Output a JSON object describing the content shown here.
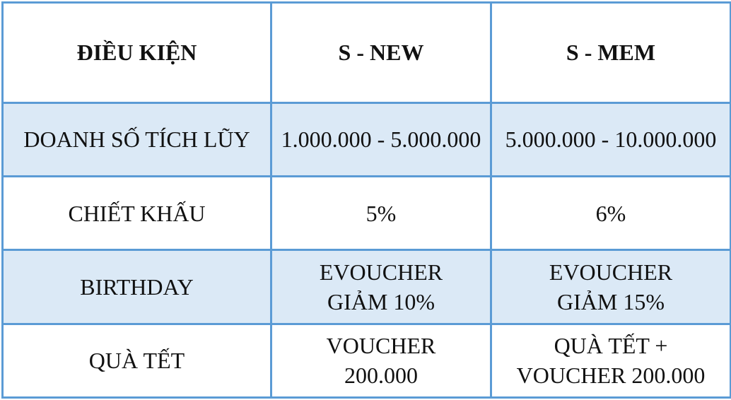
{
  "header": {
    "condition": "ĐIỀU KIỆN",
    "tier1": "S - NEW",
    "tier2": "S - MEM"
  },
  "rows": [
    {
      "label": "DOANH SỐ TÍCH LŨY",
      "tier1": [
        "1.000.000 - 5.000.000"
      ],
      "tier2": [
        "5.000.000 - 10.000.000"
      ]
    },
    {
      "label": "CHIẾT KHẤU",
      "tier1": [
        "5%"
      ],
      "tier2": [
        "6%"
      ]
    },
    {
      "label": "BIRTHDAY",
      "tier1": [
        "EVOUCHER",
        "GIẢM 10%"
      ],
      "tier2": [
        "EVOUCHER",
        "GIẢM 15%"
      ]
    },
    {
      "label": "QUÀ TẾT",
      "tier1": [
        "VOUCHER",
        "200.000"
      ],
      "tier2": [
        "QUÀ TẾT +",
        "VOUCHER 200.000"
      ]
    }
  ],
  "colors": {
    "border": "#5b9bd5",
    "shaded_row": "#dbe9f6",
    "plain_row": "#ffffff",
    "text": "#111111"
  }
}
